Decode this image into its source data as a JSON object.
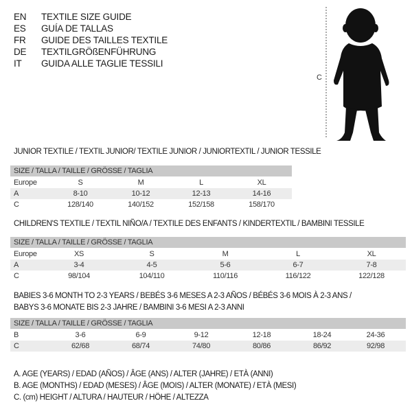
{
  "languages": [
    {
      "code": "EN",
      "title": "TEXTILE SIZE GUIDE"
    },
    {
      "code": "ES",
      "title": "GUÍA DE TALLAS"
    },
    {
      "code": "FR",
      "title": "GUIDE DES TAILLES TEXTILE"
    },
    {
      "code": "DE",
      "title": "TEXTILGRÖßENFÜHRUNG"
    },
    {
      "code": "IT",
      "title": "GUIDA ALLE TAGLIE TESSILI"
    }
  ],
  "figure": {
    "measure_label": "C"
  },
  "tables": [
    {
      "title": "JUNIOR TEXTILE / TEXTIL JUNIOR/ TEXTILE JUNIOR / JUNIORTEXTIL / JUNIOR TESSILE",
      "header": "SIZE / TALLA / TAILLE / GRÖSSE / TAGLIA",
      "rows": [
        {
          "label": "Europe",
          "values": [
            "S",
            "M",
            "L",
            "XL"
          ]
        },
        {
          "label": "A",
          "values": [
            "8-10",
            "10-12",
            "12-13",
            "14-16"
          ]
        },
        {
          "label": "C",
          "values": [
            "128/140",
            "140/152",
            "152/158",
            "158/170"
          ]
        }
      ]
    },
    {
      "title": "CHILDREN'S TEXTILE / TEXTIL NIÑO/A / TEXTILE DES ENFANTS / KINDERTEXTIL / BAMBINI TESSILE",
      "header": "SIZE / TALLA / TAILLE / GRÖSSE / TAGLIA",
      "rows": [
        {
          "label": "Europe",
          "values": [
            "XS",
            "S",
            "M",
            "L",
            "XL"
          ]
        },
        {
          "label": "A",
          "values": [
            "3-4",
            "4-5",
            "5-6",
            "6-7",
            "7-8"
          ]
        },
        {
          "label": "C",
          "values": [
            "98/104",
            "104/110",
            "110/116",
            "116/122",
            "122/128"
          ]
        }
      ]
    },
    {
      "title": "BABIES 3-6 MONTH TO 2-3 YEARS / BEBÉS 3-6 MESES A 2-3 AÑOS / BÉBÉS 3-6 MOIS À 2-3 ANS /",
      "title2": "BABYS 3-6 MONATE BIS 2-3 JAHRE / BAMBINI 3-6 MESI A 2-3 ANNI",
      "header": "SIZE / TALLA / TAILLE / GRÖSSE / TAGLIA",
      "rows": [
        {
          "label": "B",
          "values": [
            "3-6",
            "6-9",
            "9-12",
            "12-18",
            "18-24",
            "24-36"
          ]
        },
        {
          "label": "C",
          "values": [
            "62/68",
            "68/74",
            "74/80",
            "80/86",
            "86/92",
            "92/98"
          ]
        }
      ]
    }
  ],
  "legend": [
    "A. AGE (YEARS) / EDAD (AÑOS) / ÂGE (ANS) / ALTER (JAHRE) / ETÀ (ANNI)",
    "B. AGE (MONTHS) / EDAD (MESES) / ÂGE (MOIS) / ALTER (MONATE) / ETÀ (MESI)",
    "C. (cm) HEIGHT / ALTURA / HAUTEUR / HÖHE / ALTEZZA"
  ]
}
